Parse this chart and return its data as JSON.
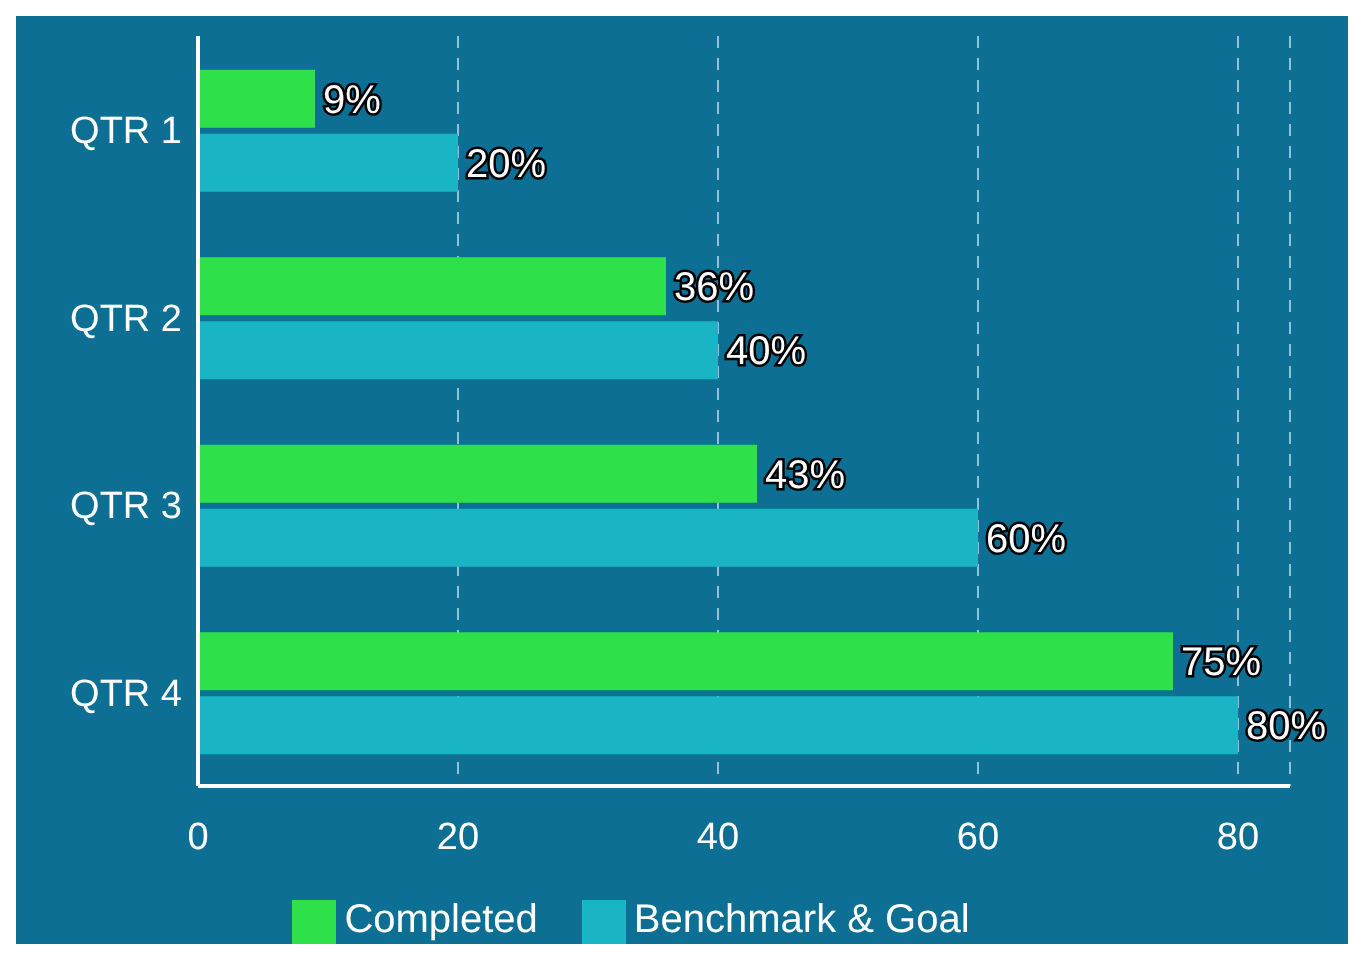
{
  "chart_data": {
    "type": "bar",
    "orientation": "horizontal",
    "categories": [
      "QTR 1",
      "QTR 2",
      "QTR 3",
      "QTR 4"
    ],
    "series": [
      {
        "name": "Completed",
        "color": "#2ee04a",
        "values": [
          9,
          36,
          43,
          75
        ],
        "value_labels": [
          "9%",
          "36%",
          "43%",
          "75%"
        ]
      },
      {
        "name": "Benchmark & Goal",
        "color": "#19b5c5",
        "values": [
          20,
          40,
          60,
          80
        ],
        "value_labels": [
          "20%",
          "40%",
          "60%",
          "80%"
        ]
      }
    ],
    "xlim": [
      0,
      84
    ],
    "xticks": [
      0,
      20,
      40,
      60,
      80
    ],
    "grid": "x",
    "legend": "bottom"
  }
}
